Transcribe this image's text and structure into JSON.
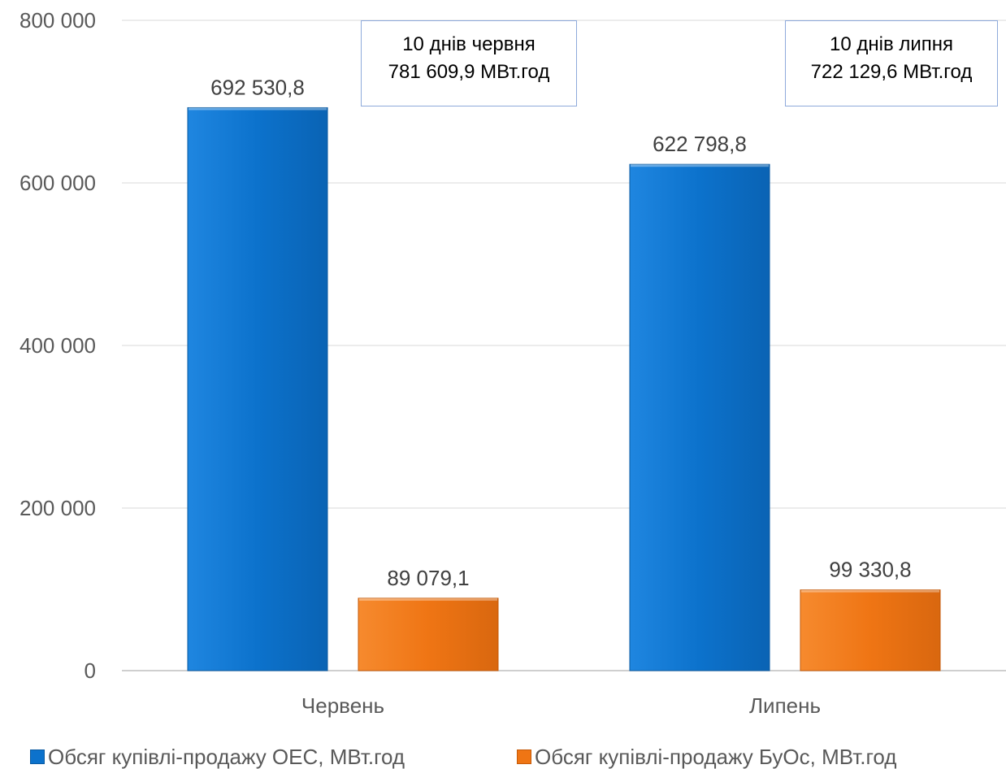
{
  "chart_data": {
    "type": "bar",
    "categories": [
      "Червень",
      "Липень"
    ],
    "series": [
      {
        "name": "Обсяг купівлі-продажу ОЕС, МВт.год",
        "values": [
          692530.8,
          622798.8
        ],
        "labels": [
          "692 530,8",
          "622 798,8"
        ],
        "color": "#0c72cc"
      },
      {
        "name": "Обсяг купівлі-продажу БуОс, МВт.год",
        "values": [
          89079.1,
          99330.8
        ],
        "labels": [
          "89 079,1",
          "99 330,8"
        ],
        "color": "#ef7514"
      }
    ],
    "ylim": [
      0,
      800000
    ],
    "yticks": [
      0,
      200000,
      400000,
      600000,
      800000
    ],
    "ytick_labels": [
      "0",
      "200 000",
      "400 000",
      "600 000",
      "800 000"
    ],
    "grid": true,
    "legend_position": "bottom",
    "annotations": [
      {
        "lines": [
          "10 днів червня",
          "781 609,9 МВт.год"
        ]
      },
      {
        "lines": [
          "10 днів липня",
          "722 129,6 МВт.год"
        ]
      }
    ]
  }
}
